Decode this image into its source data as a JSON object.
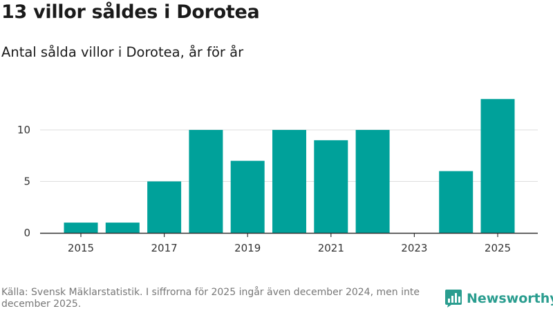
{
  "title": "13 villor såldes i Dorotea",
  "subtitle": "Antal sålda villor i Dorotea, år för år",
  "source": "Källa: Svensk Mäklarstatistik. I siffrorna för 2025 ingår även december 2024, men inte december 2025.",
  "brand": {
    "name": "Newsworthy",
    "color": "#2a9d8f"
  },
  "colors": {
    "bar": "#00a19a",
    "grid": "#dddddd",
    "axis": "#333333"
  },
  "chart_data": {
    "type": "bar",
    "title": "13 villor såldes i Dorotea",
    "xlabel": "",
    "ylabel": "",
    "categories": [
      "2015",
      "2016",
      "2017",
      "2018",
      "2019",
      "2020",
      "2021",
      "2022",
      "2023",
      "2024",
      "2025"
    ],
    "values": [
      1,
      1,
      5,
      10,
      7,
      10,
      9,
      10,
      0,
      6,
      13
    ],
    "x_tick_labels": [
      "2015",
      "2017",
      "2019",
      "2021",
      "2023",
      "2025"
    ],
    "y_ticks": [
      0,
      5,
      10
    ],
    "y_tick_labels": [
      "0",
      "5",
      "10"
    ],
    "ylim": [
      0,
      13.3
    ],
    "grid": true
  }
}
